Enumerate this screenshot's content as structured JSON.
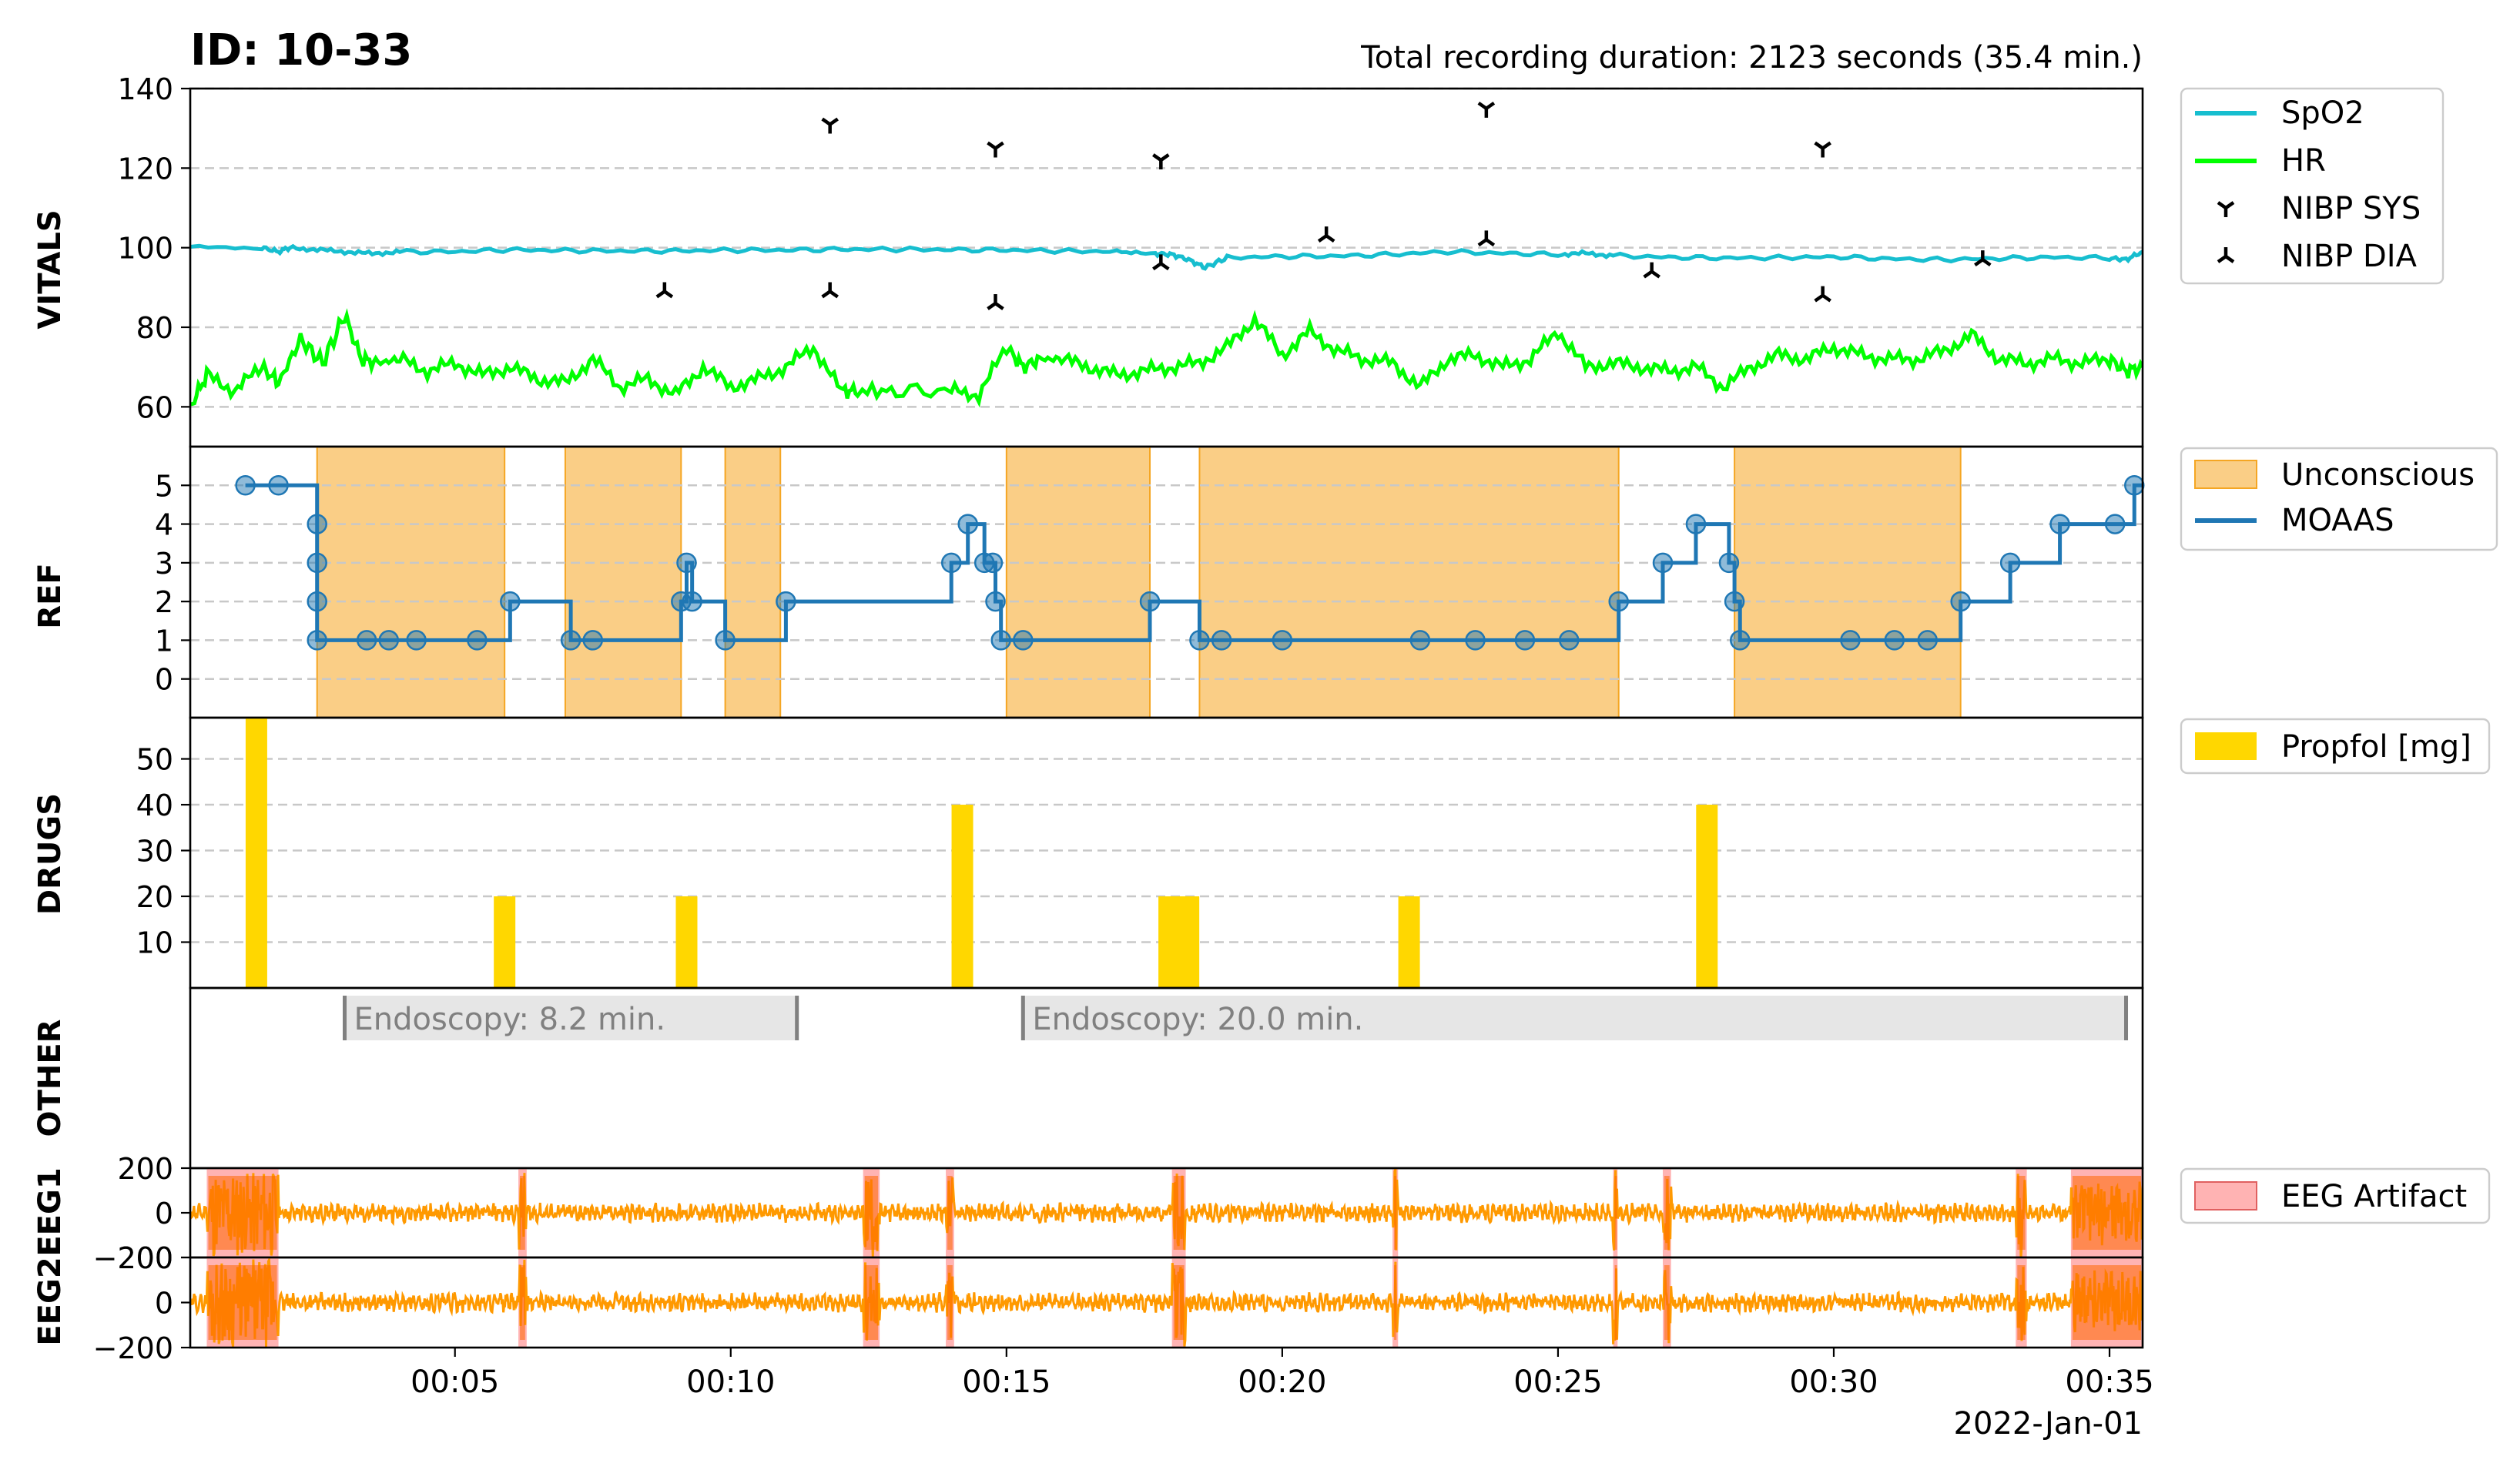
{
  "header": {
    "title": "ID: 10-33",
    "duration": "Total recording duration: 2123 seconds (35.4 min.)",
    "date": "2022-Jan-01"
  },
  "panels": {
    "vitals": "VITALS",
    "ref": "REF",
    "drugs": "DRUGS",
    "other": "OTHER",
    "eeg1": "EEG1",
    "eeg2": "EEG2"
  },
  "chart_data": [
    {
      "panel": "VITALS",
      "type": "line",
      "x_unit": "minutes",
      "xlim": [
        0.2,
        35.6
      ],
      "ylim": [
        50,
        140
      ],
      "yticks": [
        60,
        80,
        100,
        120,
        140
      ],
      "grid": true,
      "legend": "outside-right",
      "series": [
        {
          "name": "SpO2",
          "color": "#17becf",
          "x": [
            0.2,
            1.5,
            1.8,
            2.0,
            2.5,
            3.0,
            3.5,
            4.0,
            5.0,
            6.0,
            7.0,
            8.0,
            9.0,
            10.0,
            11.0,
            12.0,
            13.0,
            14.0,
            15.0,
            16.0,
            17.0,
            17.7,
            18.0,
            18.3,
            18.6,
            19.0,
            20.0,
            21.0,
            22.0,
            23.0,
            24.0,
            25.0,
            25.5,
            26.0,
            27.0,
            28.0,
            29.0,
            30.0,
            31.0,
            32.0,
            33.0,
            34.0,
            35.0,
            35.3,
            35.6
          ],
          "y": [
            100,
            100,
            99,
            100,
            99.5,
            99,
            98.5,
            99,
            99,
            99.5,
            99.3,
            99.2,
            99.2,
            99.4,
            99.4,
            99.6,
            99.6,
            99.5,
            99.4,
            99.2,
            99,
            98.5,
            98.3,
            97,
            95,
            97.5,
            97.8,
            97.9,
            98.3,
            99,
            98.6,
            98.3,
            98.6,
            98,
            97.6,
            97.4,
            97.5,
            97.7,
            97.2,
            97,
            97.3,
            97.6,
            97.4,
            97,
            99
          ]
        },
        {
          "name": "HR",
          "color": "#00ff00",
          "x": [
            0.2,
            0.5,
            1.0,
            1.5,
            1.8,
            2.2,
            2.6,
            3.0,
            3.3,
            3.6,
            4.0,
            4.5,
            5.0,
            5.5,
            6.0,
            6.5,
            7.0,
            7.5,
            8.0,
            8.5,
            9.0,
            9.5,
            10.0,
            10.5,
            11.0,
            11.5,
            12.0,
            12.3,
            13.0,
            14.0,
            14.5,
            15.0,
            15.3,
            15.6,
            16.0,
            16.5,
            17.0,
            17.5,
            18.0,
            18.5,
            19.0,
            19.5,
            20.0,
            20.5,
            21.0,
            21.5,
            22.0,
            22.5,
            23.0,
            23.5,
            24.0,
            24.5,
            25.0,
            25.5,
            26.0,
            26.5,
            27.0,
            27.5,
            28.0,
            28.5,
            29.0,
            29.5,
            30.0,
            30.5,
            31.0,
            31.5,
            32.0,
            32.5,
            33.0,
            33.5,
            34.0,
            34.5,
            35.0,
            35.3,
            35.6
          ],
          "y": [
            60,
            68,
            64,
            70,
            66,
            77,
            71,
            83,
            72,
            71,
            72,
            69,
            71,
            68,
            70,
            67,
            66,
            72,
            65,
            67,
            63,
            70,
            65,
            67,
            70,
            75,
            64,
            64,
            64,
            64,
            63,
            75,
            70,
            72,
            72,
            70,
            68,
            69,
            70,
            71,
            75,
            82,
            73,
            79,
            74,
            72,
            71,
            65,
            72,
            73,
            70,
            72,
            79,
            70,
            71,
            70,
            69,
            70,
            65,
            70,
            73,
            72,
            75,
            73,
            72,
            72,
            74,
            78,
            72,
            71,
            72,
            71,
            72,
            69,
            70
          ]
        },
        {
          "name": "NIBP SYS",
          "color": "#000000",
          "marker": "tri_down",
          "x": [
            11.8,
            14.8,
            17.8,
            23.7,
            29.8
          ],
          "y": [
            131,
            125,
            122,
            135,
            125
          ]
        },
        {
          "name": "NIBP DIA",
          "color": "#000000",
          "marker": "tri_up",
          "x": [
            8.8,
            11.8,
            14.8,
            17.8,
            20.8,
            23.7,
            26.7,
            29.8,
            32.7
          ],
          "y": [
            89,
            89,
            86,
            96,
            103,
            102,
            94,
            88,
            97
          ]
        }
      ]
    },
    {
      "panel": "REF",
      "type": "line",
      "x_unit": "minutes",
      "xlim": [
        0.2,
        35.6
      ],
      "ylim": [
        -1,
        6
      ],
      "yticks": [
        0,
        1,
        2,
        3,
        4,
        5
      ],
      "grid": true,
      "legend": "outside-right",
      "series": [
        {
          "name": "MOAAS",
          "color": "#1f77b4",
          "style": "step-post",
          "points": [
            [
              1.2,
              5
            ],
            [
              1.8,
              5
            ],
            [
              2.5,
              4
            ],
            [
              2.5,
              3
            ],
            [
              2.5,
              2
            ],
            [
              2.5,
              1
            ],
            [
              3.4,
              1
            ],
            [
              3.8,
              1
            ],
            [
              4.3,
              1
            ],
            [
              5.4,
              1
            ],
            [
              6.0,
              2
            ],
            [
              7.1,
              1
            ],
            [
              7.5,
              1
            ],
            [
              9.1,
              2
            ],
            [
              9.2,
              3
            ],
            [
              9.3,
              2
            ],
            [
              9.9,
              1
            ],
            [
              11.0,
              2
            ],
            [
              14.0,
              3
            ],
            [
              14.3,
              4
            ],
            [
              14.6,
              3
            ],
            [
              14.75,
              3
            ],
            [
              14.8,
              2
            ],
            [
              14.9,
              1
            ],
            [
              15.3,
              1
            ],
            [
              17.6,
              2
            ],
            [
              18.5,
              1
            ],
            [
              18.9,
              1
            ],
            [
              20.0,
              1
            ],
            [
              22.5,
              1
            ],
            [
              23.5,
              1
            ],
            [
              24.4,
              1
            ],
            [
              25.2,
              1
            ],
            [
              26.1,
              2
            ],
            [
              26.9,
              3
            ],
            [
              27.5,
              4
            ],
            [
              28.1,
              3
            ],
            [
              28.2,
              2
            ],
            [
              28.3,
              1
            ],
            [
              30.3,
              1
            ],
            [
              31.1,
              1
            ],
            [
              31.7,
              1
            ],
            [
              32.3,
              2
            ],
            [
              33.2,
              3
            ],
            [
              34.1,
              4
            ],
            [
              35.1,
              4
            ],
            [
              35.45,
              5
            ]
          ]
        }
      ],
      "regions": {
        "name": "Unconscious",
        "color": "#f5a623",
        "spans": [
          [
            2.5,
            5.9
          ],
          [
            7.0,
            9.1
          ],
          [
            9.9,
            10.9
          ],
          [
            15.0,
            17.6
          ],
          [
            18.5,
            26.1
          ],
          [
            28.2,
            32.3
          ]
        ]
      }
    },
    {
      "panel": "DRUGS",
      "type": "bar",
      "x_unit": "minutes",
      "xlim": [
        0.2,
        35.6
      ],
      "ylim": [
        0,
        59
      ],
      "yticks": [
        10,
        20,
        30,
        40,
        50
      ],
      "grid": true,
      "legend": "outside-right",
      "series": [
        {
          "name": "Propfol [mg]",
          "color": "#ffd700",
          "x": [
            1.4,
            5.9,
            9.2,
            14.2,
            17.95,
            18.3,
            22.3,
            27.7
          ],
          "values": [
            59,
            20,
            20,
            40,
            20,
            20,
            20,
            40
          ]
        }
      ]
    },
    {
      "panel": "OTHER",
      "type": "bar",
      "x_unit": "minutes",
      "xlim": [
        0.2,
        35.6
      ],
      "series": [
        {
          "name": "Endoscopy",
          "color": "#e6e6e6",
          "spans": [
            [
              3.0,
              11.2
            ],
            [
              15.3,
              35.3
            ]
          ],
          "labels": [
            "Endoscopy: 8.2 min.",
            "Endoscopy: 20.0 min."
          ]
        }
      ]
    },
    {
      "panel": "EEG1",
      "type": "line",
      "x_unit": "minutes",
      "xlim": [
        0.2,
        35.6
      ],
      "ylim": [
        -200,
        200
      ],
      "yticks": [
        -200,
        0,
        200
      ],
      "legend": "outside-right",
      "series": [
        {
          "name": "EEG1",
          "color": "#ff9900"
        }
      ],
      "regions": {
        "name": "EEG Artifact",
        "color": "#ff9a9a",
        "spans": [
          [
            0.5,
            1.8
          ],
          [
            6.15,
            6.3
          ],
          [
            12.4,
            12.7
          ],
          [
            13.9,
            14.05
          ],
          [
            18.0,
            18.25
          ],
          [
            22.0,
            22.1
          ],
          [
            26.0,
            26.08
          ],
          [
            26.9,
            27.05
          ],
          [
            33.3,
            33.5
          ],
          [
            34.3,
            35.6
          ]
        ]
      }
    },
    {
      "panel": "EEG2",
      "type": "line",
      "x_unit": "minutes",
      "xlim": [
        0.2,
        35.6
      ],
      "ylim": [
        -200,
        200
      ],
      "yticks": [
        -200,
        0,
        200
      ],
      "series": [
        {
          "name": "EEG2",
          "color": "#ff9900"
        }
      ],
      "regions": {
        "name": "EEG Artifact",
        "color": "#ff9a9a",
        "spans": [
          [
            0.5,
            1.8
          ],
          [
            6.15,
            6.3
          ],
          [
            12.4,
            12.7
          ],
          [
            13.9,
            14.05
          ],
          [
            18.0,
            18.25
          ],
          [
            22.0,
            22.1
          ],
          [
            26.0,
            26.08
          ],
          [
            26.9,
            27.05
          ],
          [
            33.3,
            33.5
          ],
          [
            34.3,
            35.6
          ]
        ]
      }
    },
    {
      "panel": "x-axis",
      "type": "line",
      "x_ticks": [
        5,
        10,
        15,
        20,
        25,
        30,
        35
      ],
      "x_tick_labels": [
        "00:05",
        "00:10",
        "00:15",
        "00:20",
        "00:25",
        "00:30",
        "00:35"
      ]
    }
  ]
}
